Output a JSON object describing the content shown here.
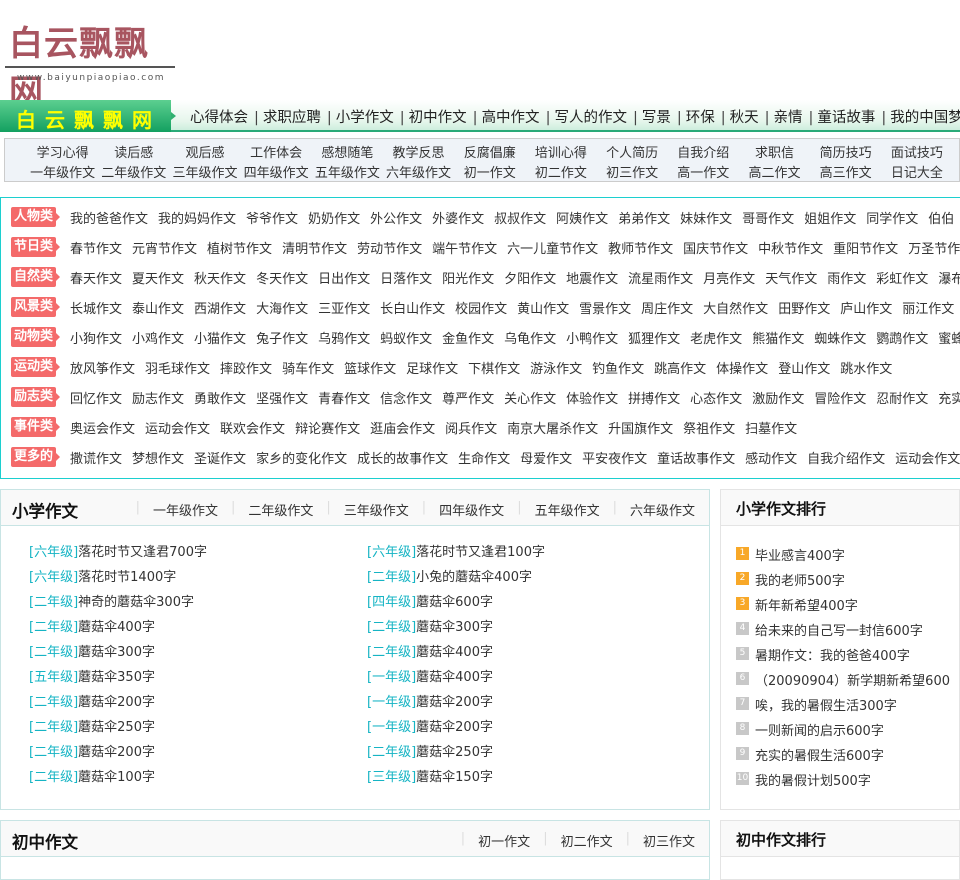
{
  "logo": {
    "title": "白云飘飘网",
    "url": "www.baiyunpiaopiao.com"
  },
  "nav": {
    "brand": "白云飘飘网",
    "items": [
      "心得体会",
      "求职应聘",
      "小学作文",
      "初中作文",
      "高中作文",
      "写人的作文",
      "写景",
      "环保",
      "秋天",
      "亲情",
      "童话故事",
      "我的中国梦作文"
    ]
  },
  "subnav": {
    "row1": [
      "学习心得",
      "读后感",
      "观后感",
      "工作体会",
      "感想随笔",
      "教学反思",
      "反腐倡廉",
      "培训心得",
      "个人简历",
      "自我介绍",
      "求职信",
      "简历技巧",
      "面试技巧"
    ],
    "row2": [
      "一年级作文",
      "二年级作文",
      "三年级作文",
      "四年级作文",
      "五年级作文",
      "六年级作文",
      "初一作文",
      "初二作文",
      "初三作文",
      "高一作文",
      "高二作文",
      "高三作文",
      "日记大全"
    ]
  },
  "categories": [
    {
      "label": "人物类",
      "items": [
        "我的爸爸作文",
        "我的妈妈作文",
        "爷爷作文",
        "奶奶作文",
        "外公作文",
        "外婆作文",
        "叔叔作文",
        "阿姨作文",
        "弟弟作文",
        "妹妹作文",
        "哥哥作文",
        "姐姐作文",
        "同学作文",
        "伯伯"
      ]
    },
    {
      "label": "节日类",
      "items": [
        "春节作文",
        "元宵节作文",
        "植树节作文",
        "清明节作文",
        "劳动节作文",
        "端午节作文",
        "六一儿童节作文",
        "教师节作文",
        "国庆节作文",
        "中秋节作文",
        "重阳节作文",
        "万圣节作"
      ]
    },
    {
      "label": "自然类",
      "items": [
        "春天作文",
        "夏天作文",
        "秋天作文",
        "冬天作文",
        "日出作文",
        "日落作文",
        "阳光作文",
        "夕阳作文",
        "地震作文",
        "流星雨作文",
        "月亮作文",
        "天气作文",
        "雨作文",
        "彩虹作文",
        "瀑布"
      ]
    },
    {
      "label": "风景类",
      "items": [
        "长城作文",
        "泰山作文",
        "西湖作文",
        "大海作文",
        "三亚作文",
        "长白山作文",
        "校园作文",
        "黄山作文",
        "雪景作文",
        "周庄作文",
        "大自然作文",
        "田野作文",
        "庐山作文",
        "丽江作文"
      ]
    },
    {
      "label": "动物类",
      "items": [
        "小狗作文",
        "小鸡作文",
        "小猫作文",
        "兔子作文",
        "乌鸦作文",
        "蚂蚁作文",
        "金鱼作文",
        "乌龟作文",
        "小鸭作文",
        "狐狸作文",
        "老虎作文",
        "熊猫作文",
        "蜘蛛作文",
        "鹦鹉作文",
        "蜜蜂"
      ]
    },
    {
      "label": "运动类",
      "items": [
        "放风筝作文",
        "羽毛球作文",
        "摔跤作文",
        "骑车作文",
        "篮球作文",
        "足球作文",
        "下棋作文",
        "游泳作文",
        "钓鱼作文",
        "跳高作文",
        "体操作文",
        "登山作文",
        "跳水作文"
      ]
    },
    {
      "label": "励志类",
      "items": [
        "回忆作文",
        "励志作文",
        "勇敢作文",
        "坚强作文",
        "青春作文",
        "信念作文",
        "尊严作文",
        "关心作文",
        "体验作文",
        "拼搏作文",
        "心态作文",
        "激励作文",
        "冒险作文",
        "忍耐作文",
        "充实"
      ]
    },
    {
      "label": "事件类",
      "items": [
        "奥运会作文",
        "运动会作文",
        "联欢会作文",
        "辩论赛作文",
        "逛庙会作文",
        "阅兵作文",
        "南京大屠杀作文",
        "升国旗作文",
        "祭祖作文",
        "扫墓作文"
      ]
    },
    {
      "label": "更多的",
      "items": [
        "撒谎作文",
        "梦想作文",
        "圣诞作文",
        "家乡的变化作文",
        "成长的故事作文",
        "生命作文",
        "母爱作文",
        "平安夜作文",
        "童话故事作文",
        "感动作文",
        "自我介绍作文",
        "运动会作文"
      ]
    }
  ],
  "primary": {
    "title": "小学作文",
    "tabs": [
      "一年级作文",
      "二年级作文",
      "三年级作文",
      "四年级作文",
      "五年级作文",
      "六年级作文"
    ],
    "left": [
      [
        "[六年级]",
        "落花时节又逢君700字"
      ],
      [
        "[六年级]",
        "落花时节1400字"
      ],
      [
        "[二年级]",
        "神奇的蘑菇伞300字"
      ],
      [
        "[二年级]",
        "蘑菇伞400字"
      ],
      [
        "[二年级]",
        "蘑菇伞300字"
      ],
      [
        "[五年级]",
        "蘑菇伞350字"
      ],
      [
        "[二年级]",
        "蘑菇伞200字"
      ],
      [
        "[二年级]",
        "蘑菇伞250字"
      ],
      [
        "[二年级]",
        "蘑菇伞200字"
      ],
      [
        "[二年级]",
        "蘑菇伞100字"
      ]
    ],
    "right": [
      [
        "[六年级]",
        "落花时节又逢君100字"
      ],
      [
        "[二年级]",
        "小兔的蘑菇伞400字"
      ],
      [
        "[四年级]",
        "蘑菇伞600字"
      ],
      [
        "[二年级]",
        "蘑菇伞300字"
      ],
      [
        "[二年级]",
        "蘑菇伞400字"
      ],
      [
        "[一年级]",
        "蘑菇伞400字"
      ],
      [
        "[一年级]",
        "蘑菇伞200字"
      ],
      [
        "[一年级]",
        "蘑菇伞200字"
      ],
      [
        "[二年级]",
        "蘑菇伞250字"
      ],
      [
        "[三年级]",
        "蘑菇伞150字"
      ]
    ]
  },
  "primary_rank": {
    "title": "小学作文排行",
    "items": [
      "毕业感言400字",
      "我的老师500字",
      "新年新希望400字",
      "给未来的自己写一封信600字",
      "暑期作文：我的爸爸400字",
      "（20090904）新学期新希望600",
      "唉，我的暑假生活300字",
      "一则新闻的启示600字",
      "充实的暑假生活600字",
      "我的暑假计划500字"
    ]
  },
  "middle": {
    "title": "初中作文",
    "tabs": [
      "初一作文",
      "初二作文",
      "初三作文"
    ]
  },
  "middle_rank": {
    "title": "初中作文排行"
  },
  "colors": {
    "category_label": "#f46a6a",
    "grade_tag": "#16b4c4",
    "rank_top": "#f8a828",
    "rank_other": "#c8c8c8",
    "nav_green": "#13a060",
    "brand_text": "#ffff00"
  }
}
